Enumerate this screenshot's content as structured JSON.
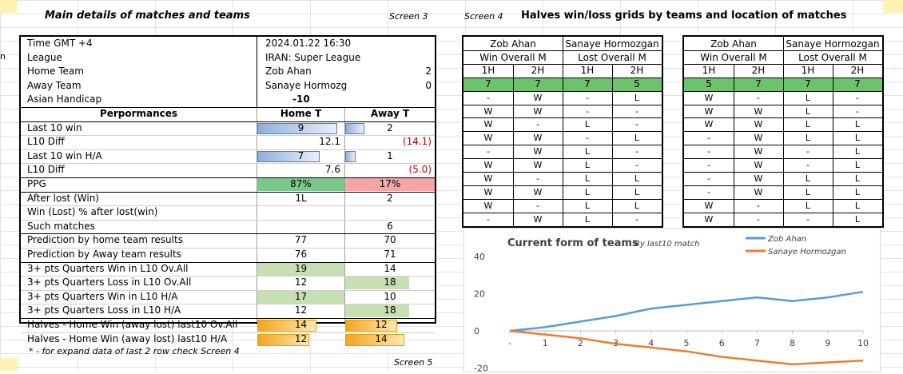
{
  "screen3": {
    "title": "Main details of matches and teams",
    "screen_label": "Screen 3",
    "footnote": "* - for expand data of last 2 row check Screen 4",
    "screen5_label": "Screen 5",
    "left_edge_char": "n",
    "details": [
      {
        "label": "Time  GMT +4",
        "value": "2024.01.22 16:30"
      },
      {
        "label": "League",
        "value": "IRAN: Super League"
      },
      {
        "label": "Home Team",
        "value": "Zob Ahan",
        "score": "2"
      },
      {
        "label": "Away Team",
        "value": "Sanaye Hormozg",
        "score": "0"
      },
      {
        "label": "Asian Handicap",
        "value": "-10"
      }
    ],
    "perf_header": {
      "label": "Perpormances",
      "home": "Home T",
      "away": "Away T"
    },
    "perf_rows": [
      {
        "label": "Last 10  win",
        "home": "9",
        "away": "2",
        "home_bar": 0.9,
        "away_bar": 0.2
      },
      {
        "label": "L10 Diff",
        "home": "12.1",
        "away": "(14.1)"
      },
      {
        "label": "Last 10  win H/A",
        "home": "7",
        "away": "1",
        "home_bar": 0.7,
        "away_bar": 0.1
      },
      {
        "label": "L10 Diff",
        "home": "7.6",
        "away": "(5.0)"
      },
      {
        "label": "PPG",
        "home": "87%",
        "away": "17%",
        "home_color": "#7cc88a",
        "away_color": "#f4a6a6"
      },
      {
        "label": "After lost (Win)",
        "home": "1L",
        "away": "2"
      },
      {
        "label": "Win (Lost) % after lost(win)",
        "home": "",
        "away": ""
      },
      {
        "label": "Such matches",
        "home": "",
        "away": "6"
      },
      {
        "label": "Prediction by home team results",
        "home": "77",
        "away": "70"
      },
      {
        "label": "Prediction by Away team results",
        "home": "76",
        "away": "71"
      },
      {
        "label": "3+ pts Quarters Win in L10 Ov.All",
        "home": "19",
        "away": "14",
        "hl": "home"
      },
      {
        "label": "3+ pts Quarters Loss in L10 Ov.All",
        "home": "12",
        "away": "18",
        "hl": "away"
      },
      {
        "label": "3+ pts Quarters Win in L10 H/A",
        "home": "17",
        "away": "10",
        "hl": "home"
      },
      {
        "label": "3+ pts Quarters Loss in L10 H/A",
        "home": "12",
        "away": "18",
        "hl": "away"
      },
      {
        "label": "Halves - Home Win  (away lost) last10 Ov.All",
        "home": "14",
        "away": "12",
        "home_bar": 0.8,
        "away_bar": 0.7
      },
      {
        "label": "Halves - Home Win  (away lost) last10 H/A",
        "home": "12",
        "away": "14",
        "home_bar": 0.7,
        "away_bar": 0.8
      }
    ]
  },
  "screen4": {
    "screen_label": "Screen 4",
    "title": "Halves win/loss grids by teams and location of matches",
    "grids": [
      {
        "team1": "Zob Ahan",
        "team2": "Sanaye Hormozgan",
        "sub1": "Win Overall M",
        "sub2": "Lost Overall M",
        "halves": [
          "1H",
          "2H",
          "1H",
          "2H"
        ],
        "totals": [
          "7",
          "7",
          "7",
          "5"
        ],
        "rows": [
          [
            "-",
            "W",
            "-",
            "L"
          ],
          [
            "W",
            "W",
            "-",
            "-"
          ],
          [
            "W",
            "-",
            "L",
            "-"
          ],
          [
            "W",
            "W",
            "-",
            "L"
          ],
          [
            "-",
            "W",
            "L",
            "-"
          ],
          [
            "W",
            "W",
            "L",
            "-"
          ],
          [
            "W",
            "-",
            "L",
            "L"
          ],
          [
            "W",
            "W",
            "L",
            "L"
          ],
          [
            "W",
            "-",
            "L",
            "L"
          ],
          [
            "-",
            "W",
            "L",
            "-"
          ]
        ]
      },
      {
        "team1": "Zob Ahan",
        "team2": "Sanaye Hormozgan",
        "sub1": "Win Overall M",
        "sub2": "Lost Overall M",
        "halves": [
          "1H",
          "2H",
          "1H",
          "2H"
        ],
        "totals": [
          "5",
          "7",
          "7",
          "7"
        ],
        "rows": [
          [
            "W",
            "-",
            "L",
            "-"
          ],
          [
            "W",
            "W",
            "L",
            "-"
          ],
          [
            "W",
            "W",
            "L",
            "L"
          ],
          [
            "-",
            "W",
            "L",
            "L"
          ],
          [
            "-",
            "W",
            "-",
            "L"
          ],
          [
            "-",
            "W",
            "-",
            "L"
          ],
          [
            "-",
            "W",
            "L",
            "L"
          ],
          [
            "-",
            "W",
            "L",
            "L"
          ],
          [
            "W",
            "-",
            "L",
            "L"
          ],
          [
            "W",
            "-",
            "-",
            "L"
          ]
        ]
      }
    ]
  },
  "chart_data": {
    "type": "line",
    "title": "Current form of  teams",
    "subtitle": "By last10 match",
    "categories": [
      "-",
      "1",
      "2",
      "3",
      "4",
      "5",
      "6",
      "7",
      "8",
      "9",
      "10"
    ],
    "y_ticks": [
      "40",
      "20",
      "0",
      "-20"
    ],
    "ylim": [
      -20,
      40
    ],
    "legend_position": "top-right",
    "series": [
      {
        "name": "Zob Ahan",
        "color": "#5b9bd5",
        "values": [
          0,
          2,
          5,
          8,
          12,
          14,
          16,
          18,
          16,
          18,
          21
        ]
      },
      {
        "name": "Sanaye Hormozgan",
        "color": "#ed7d31",
        "values": [
          0,
          -2,
          -4,
          -7,
          -9,
          -11,
          -14,
          -16,
          -18,
          -17,
          -16
        ]
      }
    ]
  },
  "colors": {
    "total_green": "#6cc36c",
    "quarter_green": "#c6e0b4",
    "bar_blue": "#8fb0dc",
    "bar_orange": "#f5a51f"
  }
}
